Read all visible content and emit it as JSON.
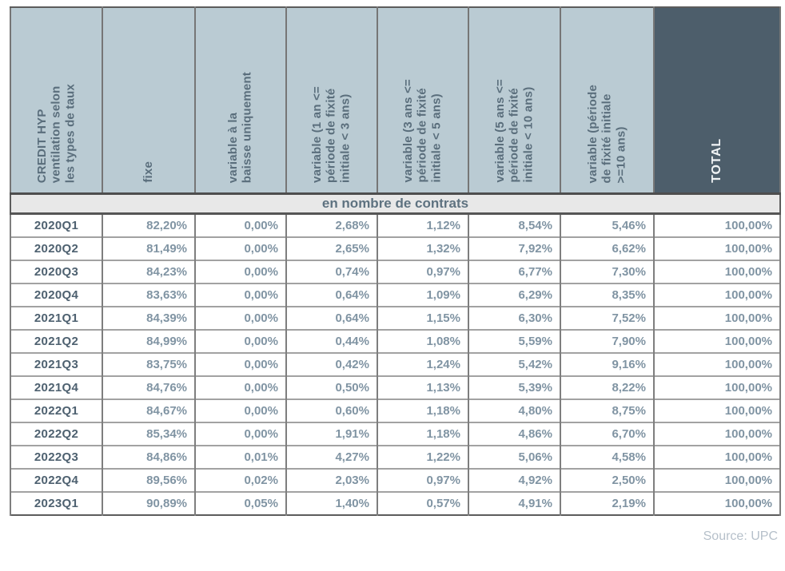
{
  "page": {
    "source_note": "Source: UPC"
  },
  "colors": {
    "header_bg": "#bacbd3",
    "header_text": "#5a6e7c",
    "total_header_bg": "#4d5e6b",
    "total_header_text": "#f1f4f6",
    "band_bg": "#e8e8e8",
    "quarter_text": "#4e6170",
    "value_text": "#8094a3"
  },
  "table": {
    "section_label": "en nombre de contrats",
    "columns": [
      {
        "label": "CREDIT HYP\nventilation selon\nles types de taux"
      },
      {
        "label": "fixe"
      },
      {
        "label": "variable à la\nbaisse uniquement"
      },
      {
        "label": "variable (1 an <=\npériode de fixité\ninitiale < 3 ans)"
      },
      {
        "label": "variable (3 ans <=\npériode de fixité\ninitiale < 5 ans)"
      },
      {
        "label": "variable (5 ans <=\npériode de fixité\ninitiale < 10 ans)"
      },
      {
        "label": "variable (période\nde fixité initiale\n>=10 ans)"
      },
      {
        "label": "TOTAL"
      }
    ],
    "rows": [
      {
        "quarter": "2020Q1",
        "values": [
          "82,20%",
          "0,00%",
          "2,68%",
          "1,12%",
          "8,54%",
          "5,46%",
          "100,00%"
        ]
      },
      {
        "quarter": "2020Q2",
        "values": [
          "81,49%",
          "0,00%",
          "2,65%",
          "1,32%",
          "7,92%",
          "6,62%",
          "100,00%"
        ]
      },
      {
        "quarter": "2020Q3",
        "values": [
          "84,23%",
          "0,00%",
          "0,74%",
          "0,97%",
          "6,77%",
          "7,30%",
          "100,00%"
        ]
      },
      {
        "quarter": "2020Q4",
        "values": [
          "83,63%",
          "0,00%",
          "0,64%",
          "1,09%",
          "6,29%",
          "8,35%",
          "100,00%"
        ]
      },
      {
        "quarter": "2021Q1",
        "values": [
          "84,39%",
          "0,00%",
          "0,64%",
          "1,15%",
          "6,30%",
          "7,52%",
          "100,00%"
        ]
      },
      {
        "quarter": "2021Q2",
        "values": [
          "84,99%",
          "0,00%",
          "0,44%",
          "1,08%",
          "5,59%",
          "7,90%",
          "100,00%"
        ]
      },
      {
        "quarter": "2021Q3",
        "values": [
          "83,75%",
          "0,00%",
          "0,42%",
          "1,24%",
          "5,42%",
          "9,16%",
          "100,00%"
        ]
      },
      {
        "quarter": "2021Q4",
        "values": [
          "84,76%",
          "0,00%",
          "0,50%",
          "1,13%",
          "5,39%",
          "8,22%",
          "100,00%"
        ]
      },
      {
        "quarter": "2022Q1",
        "values": [
          "84,67%",
          "0,00%",
          "0,60%",
          "1,18%",
          "4,80%",
          "8,75%",
          "100,00%"
        ]
      },
      {
        "quarter": "2022Q2",
        "values": [
          "85,34%",
          "0,00%",
          "1,91%",
          "1,18%",
          "4,86%",
          "6,70%",
          "100,00%"
        ]
      },
      {
        "quarter": "2022Q3",
        "values": [
          "84,86%",
          "0,01%",
          "4,27%",
          "1,22%",
          "5,06%",
          "4,58%",
          "100,00%"
        ]
      },
      {
        "quarter": "2022Q4",
        "values": [
          "89,56%",
          "0,02%",
          "2,03%",
          "0,97%",
          "4,92%",
          "2,50%",
          "100,00%"
        ]
      },
      {
        "quarter": "2023Q1",
        "values": [
          "90,89%",
          "0,05%",
          "1,40%",
          "0,57%",
          "4,91%",
          "2,19%",
          "100,00%"
        ]
      }
    ]
  }
}
